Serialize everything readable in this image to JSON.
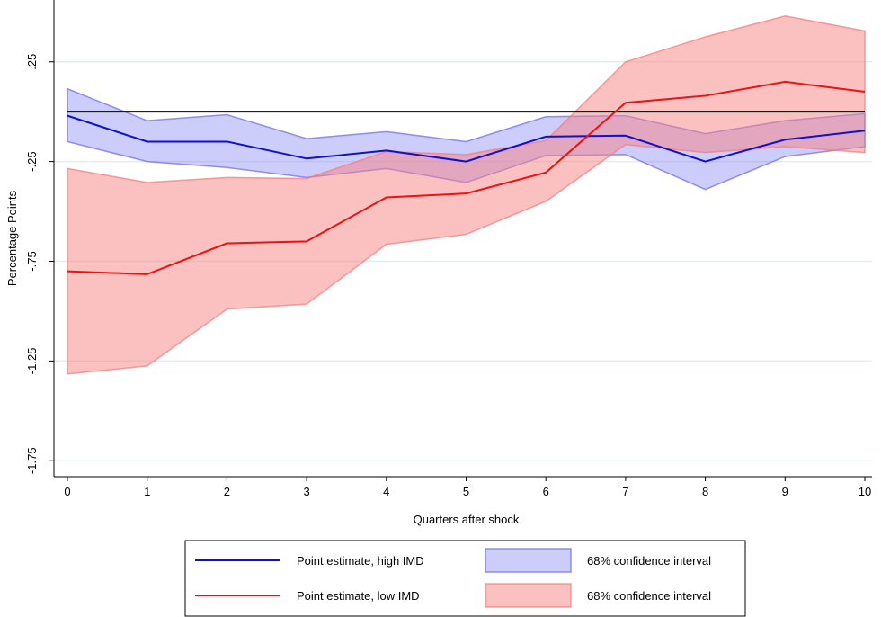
{
  "chart_data": {
    "type": "line",
    "xlabel": "Quarters after shock",
    "ylabel": "Percentage Points",
    "x": [
      0,
      1,
      2,
      3,
      4,
      5,
      6,
      7,
      8,
      9,
      10
    ],
    "x_ticks": [
      "0",
      "1",
      "2",
      "3",
      "4",
      "5",
      "6",
      "7",
      "8",
      "9",
      "10"
    ],
    "xlim": [
      0,
      10
    ],
    "y_ticks": [
      {
        "value": 0.25,
        "label": ".25"
      },
      {
        "value": -0.25,
        "label": "-.25"
      },
      {
        "value": -0.75,
        "label": "-.75"
      },
      {
        "value": -1.25,
        "label": "-1.25"
      },
      {
        "value": -1.75,
        "label": "-1.75"
      }
    ],
    "ylim": [
      -1.83,
      0.56
    ],
    "reference_line": 0,
    "grid": true,
    "series": [
      {
        "name": "Point estimate, high IMD",
        "color": "#1010d0",
        "values": [
          -0.02,
          -0.15,
          -0.15,
          -0.235,
          -0.195,
          -0.25,
          -0.125,
          -0.12,
          -0.25,
          -0.14,
          -0.095
        ]
      },
      {
        "name": "Point estimate, low IMD",
        "color": "#ee1111",
        "values": [
          -0.8,
          -0.815,
          -0.66,
          -0.65,
          -0.43,
          -0.41,
          -0.305,
          0.045,
          0.08,
          0.15,
          0.1
        ]
      }
    ],
    "bands": [
      {
        "name": "68% confidence interval",
        "fill": "rgba(130,130,245,0.4)",
        "stroke": "rgba(110,110,240,0.75)",
        "lower": [
          -0.15,
          -0.25,
          -0.28,
          -0.33,
          -0.285,
          -0.355,
          -0.22,
          -0.215,
          -0.39,
          -0.225,
          -0.175
        ],
        "upper": [
          0.115,
          -0.045,
          -0.015,
          -0.135,
          -0.1,
          -0.15,
          -0.025,
          -0.02,
          -0.11,
          -0.045,
          -0.01
        ]
      },
      {
        "name": "68% confidence interval",
        "fill": "rgba(248,130,130,0.5)",
        "stroke": "rgba(245,120,120,0.7)",
        "lower": [
          -1.315,
          -1.275,
          -0.99,
          -0.965,
          -0.665,
          -0.615,
          -0.45,
          -0.165,
          -0.205,
          -0.175,
          -0.205
        ],
        "upper": [
          -0.285,
          -0.355,
          -0.33,
          -0.335,
          -0.2,
          -0.215,
          -0.145,
          0.25,
          0.375,
          0.48,
          0.405
        ]
      }
    ],
    "legend": {
      "placement": "bottom-center",
      "items": [
        {
          "label": "Point estimate, high IMD",
          "kind": "line",
          "color": "#1010d0"
        },
        {
          "label": "68% confidence interval",
          "kind": "patch",
          "fill": "rgba(130,130,245,0.4)",
          "stroke": "rgba(110,110,240,0.75)"
        },
        {
          "label": "Point estimate, low IMD",
          "kind": "line",
          "color": "#ee1111"
        },
        {
          "label": "68% confidence interval",
          "kind": "patch",
          "fill": "rgba(248,130,130,0.5)",
          "stroke": "rgba(245,120,120,0.7)"
        }
      ]
    }
  }
}
